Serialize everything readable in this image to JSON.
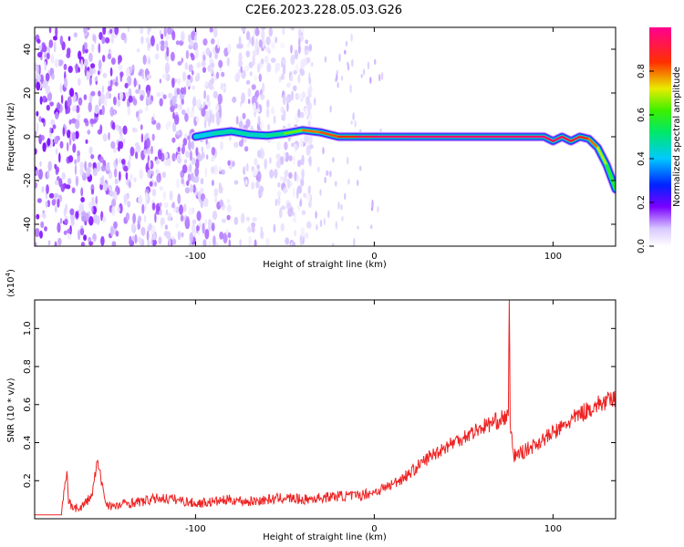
{
  "figure_title": "C2E6.2023.228.05.03.G26",
  "chart_data": [
    {
      "type": "heatmap",
      "title": "C2E6.2023.228.05.03.G26",
      "xlabel": "Height of straight line (km)",
      "ylabel": "Frequency (Hz)",
      "xlim": [
        -190,
        135
      ],
      "ylim": [
        -50,
        50
      ],
      "xticks": [
        -100,
        0,
        100
      ],
      "yticks": [
        -40,
        -20,
        0,
        20,
        40
      ],
      "colorbar": {
        "label": "Normalized spectral amplitude",
        "ticks": [
          0.0,
          0.2,
          0.4,
          0.6,
          0.8
        ],
        "range": [
          0,
          1
        ],
        "colormap": "white-violet-blue-cyan-green-yellow-red-magenta"
      },
      "ridge": {
        "name": "dominant frequency",
        "x": [
          -100,
          -90,
          -80,
          -70,
          -60,
          -50,
          -40,
          -30,
          -20,
          -10,
          0,
          20,
          40,
          60,
          80,
          95,
          100,
          105,
          110,
          115,
          120,
          125,
          130,
          135
        ],
        "y": [
          0,
          1.5,
          2.5,
          1,
          0.5,
          1.5,
          3,
          2,
          0,
          0,
          0,
          0,
          0,
          0,
          0,
          0,
          -2,
          0,
          -2,
          0,
          -1,
          -5,
          -13,
          -24
        ],
        "amplitude": [
          0.35,
          0.45,
          0.5,
          0.45,
          0.45,
          0.55,
          0.75,
          0.85,
          0.8,
          0.9,
          0.95,
          0.97,
          0.97,
          0.97,
          0.97,
          0.97,
          0.95,
          0.95,
          0.9,
          0.9,
          0.85,
          0.75,
          0.65,
          0.55
        ]
      },
      "noise_extent_x": [
        -190,
        -35
      ]
    },
    {
      "type": "line",
      "xlabel": "Height of straight line (km)",
      "ylabel": "SNR (10 * v/v)",
      "y_multiplier_label": "(x10",
      "y_multiplier_exp": "4",
      "y_multiplier_close": ")",
      "xlim": [
        -190,
        135
      ],
      "ylim": [
        0,
        1.15
      ],
      "xticks": [
        -100,
        0,
        100
      ],
      "yticks": [
        0.2,
        0.4,
        0.6,
        0.8,
        1.0
      ],
      "color": "#ee2222",
      "series": [
        {
          "x": [
            -190,
            -175,
            -172,
            -171,
            -165,
            -158,
            -155,
            -150,
            -145,
            -140,
            -130,
            -120,
            -110,
            -100,
            -90,
            -80,
            -70,
            -60,
            -50,
            -40,
            -30,
            -20,
            -10,
            0,
            10,
            20,
            30,
            40,
            50,
            60,
            70,
            75,
            75.5,
            76,
            78,
            85,
            95,
            105,
            115,
            125,
            135
          ],
          "values": [
            0.02,
            0.02,
            0.25,
            0.08,
            0.05,
            0.12,
            0.3,
            0.08,
            0.06,
            0.08,
            0.09,
            0.11,
            0.1,
            0.08,
            0.09,
            0.1,
            0.09,
            0.1,
            0.11,
            0.1,
            0.11,
            0.12,
            0.12,
            0.14,
            0.18,
            0.24,
            0.32,
            0.38,
            0.43,
            0.48,
            0.52,
            0.54,
            1.15,
            0.5,
            0.33,
            0.36,
            0.42,
            0.48,
            0.55,
            0.6,
            0.63
          ]
        }
      ]
    }
  ]
}
